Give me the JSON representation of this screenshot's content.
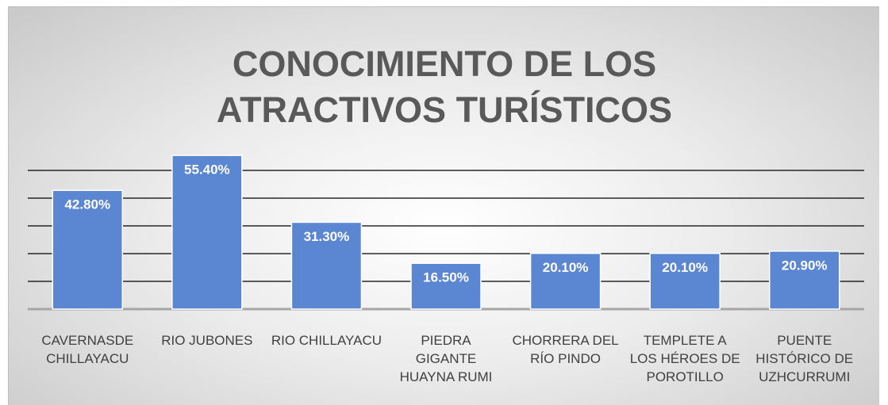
{
  "chart_data": {
    "type": "bar",
    "title": "CONOCIMIENTO DE LOS ATRACTIVOS TURÍSTICOS",
    "categories": [
      "CAVERNASDE CHILLAYACU",
      "RIO JUBONES",
      "RIO CHILLAYACU",
      "PIEDRA GIGANTE HUAYNA RUMI",
      "CHORRERA DEL RÍO PINDO",
      "TEMPLETE A LOS HÉROES DE POROTILLO",
      "PUENTE HISTÓRICO DE UZHCURRUMI"
    ],
    "values": [
      42.8,
      55.4,
      31.3,
      16.5,
      20.1,
      20.1,
      20.9
    ],
    "value_labels": [
      "42.80%",
      "55.40%",
      "31.30%",
      "16.50%",
      "20.10%",
      "20.10%",
      "20.90%"
    ],
    "color": "#5b86d1",
    "ylim": [
      0,
      60
    ],
    "yticks": [
      0,
      10,
      20,
      30,
      40,
      50
    ],
    "grid": true
  }
}
